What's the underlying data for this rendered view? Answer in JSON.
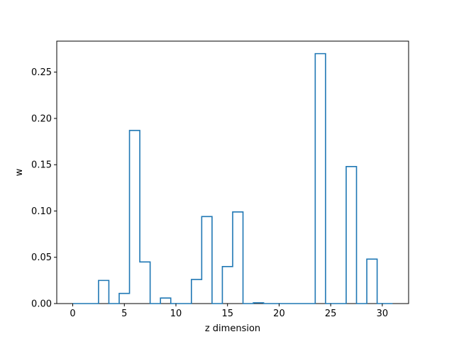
{
  "chart_data": {
    "type": "step",
    "title": "",
    "xlabel": "z dimension",
    "ylabel": "w",
    "xlim": [
      -1.55,
      32.55
    ],
    "ylim": [
      0,
      0.2835
    ],
    "xticks": [
      0,
      5,
      10,
      15,
      20,
      25,
      30
    ],
    "xtick_labels": [
      "0",
      "5",
      "10",
      "15",
      "20",
      "25",
      "30"
    ],
    "yticks": [
      0,
      0.05,
      0.1,
      0.15,
      0.2,
      0.25
    ],
    "ytick_labels": [
      "0.00",
      "0.05",
      "0.10",
      "0.15",
      "0.20",
      "0.25"
    ],
    "grid": false,
    "legend": "none",
    "color": "#1f77b4",
    "x": [
      0,
      1,
      2,
      3,
      4,
      5,
      6,
      7,
      8,
      9,
      10,
      11,
      12,
      13,
      14,
      15,
      16,
      17,
      18,
      19,
      20,
      21,
      22,
      23,
      24,
      25,
      26,
      27,
      28,
      29,
      30,
      31
    ],
    "values": [
      0,
      0,
      0,
      0.025,
      0,
      0.011,
      0.187,
      0.045,
      0,
      0.006,
      0,
      0,
      0.026,
      0.094,
      0,
      0.04,
      0.099,
      0,
      0.0008,
      0,
      0,
      0,
      0,
      0,
      0.27,
      0,
      0,
      0.148,
      0,
      0.048,
      0,
      0
    ]
  }
}
